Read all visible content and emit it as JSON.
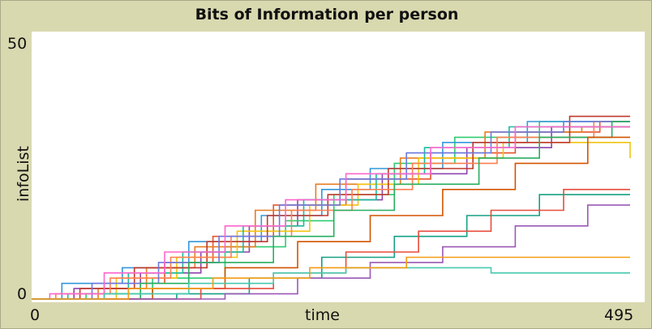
{
  "chart_data": {
    "type": "line",
    "title": "Bits of Information per person",
    "xlabel": "time",
    "ylabel": "infoList",
    "xlim": [
      0,
      495
    ],
    "ylim": [
      0,
      50
    ],
    "x_tick_labels": [
      "0",
      "495"
    ],
    "y_tick_labels": [
      "0",
      "50"
    ],
    "grid": false,
    "series": [
      {
        "color": "#e4572e",
        "steps": [
          [
            0,
            0
          ],
          [
            60,
            3
          ],
          [
            110,
            7
          ],
          [
            150,
            12
          ],
          [
            200,
            18
          ],
          [
            260,
            23
          ],
          [
            330,
            28
          ],
          [
            400,
            32
          ],
          [
            470,
            34
          ],
          [
            495,
            34
          ]
        ]
      },
      {
        "color": "#8e44ad",
        "steps": [
          [
            0,
            0
          ],
          [
            35,
            2
          ],
          [
            90,
            5
          ],
          [
            140,
            9
          ],
          [
            180,
            14
          ],
          [
            220,
            19
          ],
          [
            290,
            24
          ],
          [
            360,
            29
          ],
          [
            430,
            33
          ],
          [
            495,
            33
          ]
        ]
      },
      {
        "color": "#2ecc71",
        "steps": [
          [
            0,
            0
          ],
          [
            45,
            1
          ],
          [
            100,
            4
          ],
          [
            160,
            10
          ],
          [
            210,
            15
          ],
          [
            250,
            20
          ],
          [
            300,
            26
          ],
          [
            350,
            31
          ],
          [
            420,
            34
          ],
          [
            495,
            34
          ]
        ]
      },
      {
        "color": "#3498db",
        "steps": [
          [
            0,
            0
          ],
          [
            25,
            3
          ],
          [
            75,
            6
          ],
          [
            130,
            11
          ],
          [
            190,
            16
          ],
          [
            240,
            21
          ],
          [
            280,
            25
          ],
          [
            340,
            30
          ],
          [
            410,
            34
          ],
          [
            495,
            34
          ]
        ]
      },
      {
        "color": "#e67e22",
        "steps": [
          [
            0,
            0
          ],
          [
            55,
            2
          ],
          [
            95,
            6
          ],
          [
            135,
            10
          ],
          [
            185,
            17
          ],
          [
            235,
            22
          ],
          [
            305,
            27
          ],
          [
            375,
            32
          ],
          [
            455,
            33
          ],
          [
            495,
            33
          ]
        ]
      },
      {
        "color": "#f1c40f",
        "steps": [
          [
            0,
            0
          ],
          [
            70,
            4
          ],
          [
            120,
            8
          ],
          [
            170,
            13
          ],
          [
            230,
            18
          ],
          [
            270,
            22
          ],
          [
            320,
            27
          ],
          [
            390,
            30
          ],
          [
            495,
            27
          ]
        ]
      },
      {
        "color": "#1abc9c",
        "steps": [
          [
            0,
            0
          ],
          [
            30,
            1
          ],
          [
            80,
            5
          ],
          [
            125,
            9
          ],
          [
            175,
            14
          ],
          [
            225,
            19
          ],
          [
            285,
            24
          ],
          [
            325,
            29
          ],
          [
            395,
            33
          ],
          [
            495,
            33
          ]
        ]
      },
      {
        "color": "#c0392b",
        "steps": [
          [
            0,
            0
          ],
          [
            40,
            2
          ],
          [
            85,
            6
          ],
          [
            145,
            11
          ],
          [
            195,
            16
          ],
          [
            245,
            20
          ],
          [
            295,
            25
          ],
          [
            365,
            30
          ],
          [
            445,
            35
          ],
          [
            495,
            35
          ]
        ]
      },
      {
        "color": "#ff7f50",
        "steps": [
          [
            0,
            0
          ],
          [
            20,
            1
          ],
          [
            65,
            4
          ],
          [
            115,
            8
          ],
          [
            165,
            12
          ],
          [
            215,
            17
          ],
          [
            265,
            21
          ],
          [
            315,
            26
          ],
          [
            385,
            31
          ],
          [
            465,
            34
          ],
          [
            495,
            34
          ]
        ]
      },
      {
        "color": "#6c7ae0",
        "steps": [
          [
            0,
            0
          ],
          [
            50,
            3
          ],
          [
            105,
            7
          ],
          [
            155,
            12
          ],
          [
            205,
            18
          ],
          [
            255,
            23
          ],
          [
            310,
            28
          ],
          [
            380,
            32
          ],
          [
            440,
            34
          ],
          [
            495,
            34
          ]
        ]
      },
      {
        "color": "#27ae60",
        "steps": [
          [
            0,
            0
          ],
          [
            90,
            3
          ],
          [
            130,
            7
          ],
          [
            200,
            12
          ],
          [
            250,
            17
          ],
          [
            300,
            22
          ],
          [
            370,
            27
          ],
          [
            420,
            31
          ],
          [
            480,
            34
          ],
          [
            495,
            34
          ]
        ]
      },
      {
        "color": "#ff66cc",
        "steps": [
          [
            0,
            0
          ],
          [
            15,
            1
          ],
          [
            60,
            5
          ],
          [
            110,
            9
          ],
          [
            160,
            14
          ],
          [
            210,
            19
          ],
          [
            260,
            24
          ],
          [
            330,
            29
          ],
          [
            400,
            33
          ],
          [
            495,
            33
          ]
        ]
      },
      {
        "color": "#d35400",
        "steps": [
          [
            0,
            0
          ],
          [
            100,
            2
          ],
          [
            160,
            6
          ],
          [
            220,
            11
          ],
          [
            280,
            16
          ],
          [
            340,
            21
          ],
          [
            400,
            26
          ],
          [
            460,
            31
          ],
          [
            495,
            31
          ]
        ]
      },
      {
        "color": "#16a085",
        "steps": [
          [
            0,
            0
          ],
          [
            120,
            1
          ],
          [
            180,
            4
          ],
          [
            240,
            8
          ],
          [
            300,
            12
          ],
          [
            360,
            16
          ],
          [
            420,
            20
          ],
          [
            495,
            20
          ]
        ]
      },
      {
        "color": "#e74c3c",
        "steps": [
          [
            0,
            0
          ],
          [
            140,
            2
          ],
          [
            200,
            5
          ],
          [
            260,
            9
          ],
          [
            320,
            13
          ],
          [
            380,
            17
          ],
          [
            440,
            21
          ],
          [
            495,
            21
          ]
        ]
      },
      {
        "color": "#9b59b6",
        "steps": [
          [
            0,
            0
          ],
          [
            160,
            1
          ],
          [
            220,
            4
          ],
          [
            280,
            7
          ],
          [
            340,
            10
          ],
          [
            400,
            14
          ],
          [
            460,
            18
          ],
          [
            495,
            18
          ]
        ]
      },
      {
        "color": "#48c9b0",
        "steps": [
          [
            0,
            0
          ],
          [
            60,
            1
          ],
          [
            130,
            3
          ],
          [
            200,
            5
          ],
          [
            260,
            6
          ],
          [
            300,
            6
          ],
          [
            380,
            5
          ],
          [
            495,
            5
          ]
        ]
      },
      {
        "color": "#f39c12",
        "steps": [
          [
            0,
            0
          ],
          [
            80,
            2
          ],
          [
            150,
            4
          ],
          [
            230,
            6
          ],
          [
            310,
            8
          ],
          [
            380,
            8
          ],
          [
            495,
            8
          ]
        ]
      }
    ]
  }
}
